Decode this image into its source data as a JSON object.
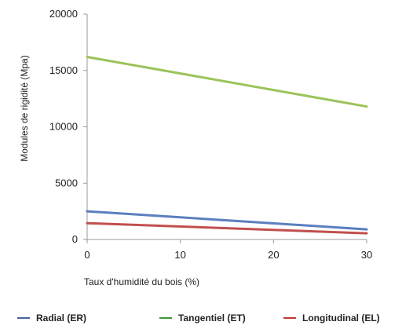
{
  "chart_data": {
    "type": "line",
    "title": "",
    "xlabel": "Taux d'humidité du bois (%)",
    "ylabel": "Modules de rigidité (Mpa)",
    "xlim": [
      0,
      30
    ],
    "ylim": [
      0,
      20000
    ],
    "x_ticks": [
      0,
      10,
      20,
      30
    ],
    "y_ticks": [
      0,
      5000,
      10000,
      15000,
      20000
    ],
    "grid": false,
    "legend_position": "bottom",
    "series": [
      {
        "name": "Radial (ER)",
        "color": "#5b7fbf",
        "x": [
          0,
          30
        ],
        "y": [
          2500,
          900
        ]
      },
      {
        "name": "Tangentiel (ET)",
        "color": "#9bc35a",
        "x": [
          0,
          30
        ],
        "y": [
          16200,
          11800
        ]
      },
      {
        "name": "Longitudinal (EL)",
        "color": "#c0504d",
        "x": [
          0,
          30
        ],
        "y": [
          1450,
          550
        ]
      }
    ],
    "legend_colors": [
      "#4a5fa5",
      "#3a9a3a",
      "#c0392b"
    ]
  }
}
